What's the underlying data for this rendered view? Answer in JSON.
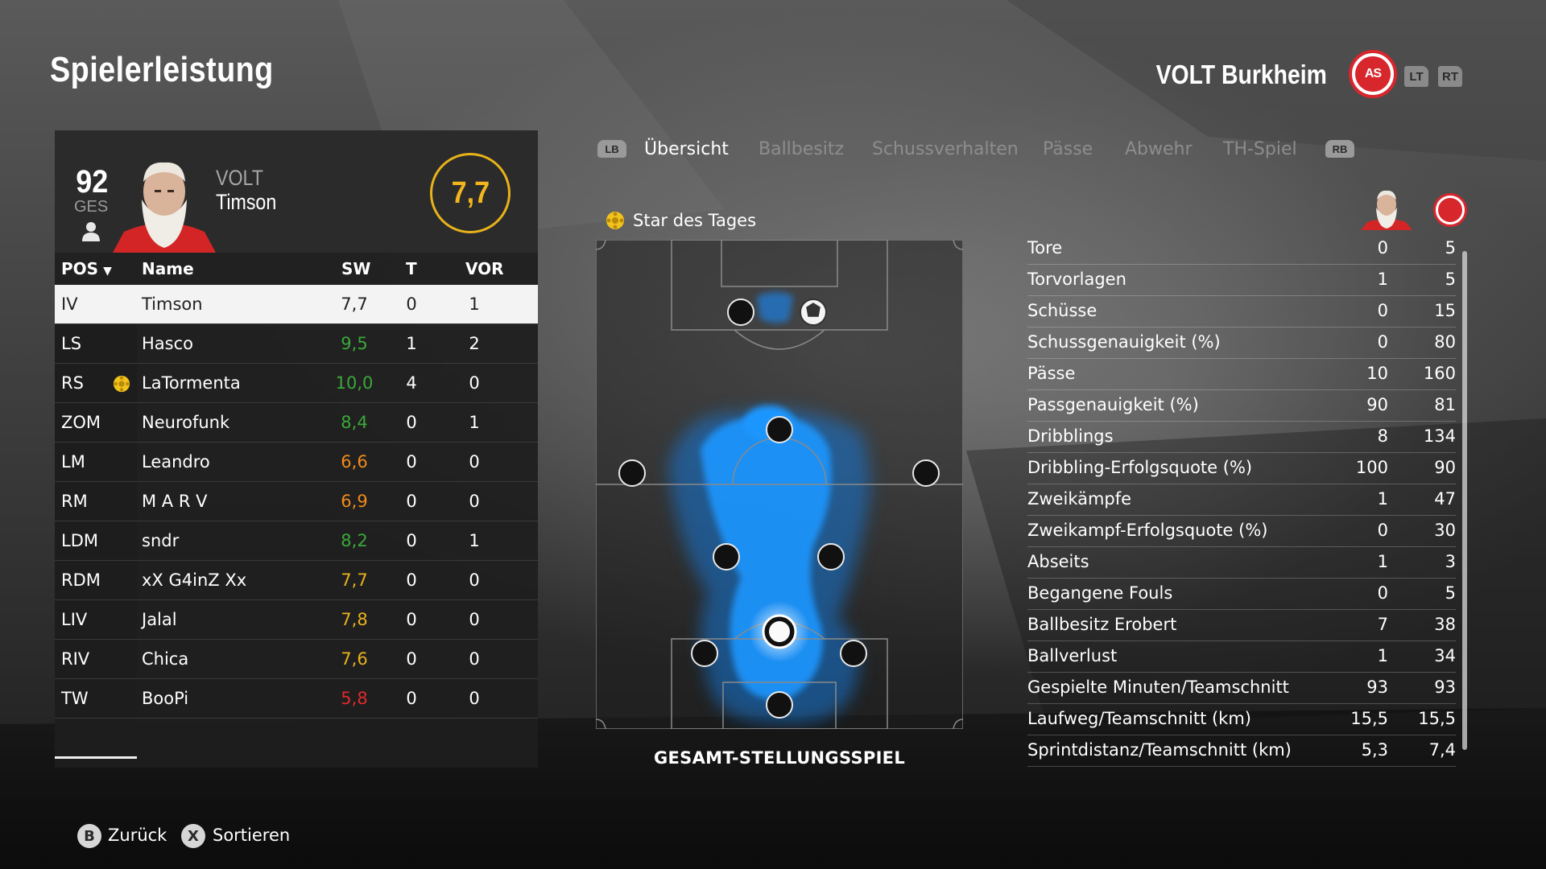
{
  "header": {
    "title": "Spielerleistung",
    "club_name": "VOLT Burkheim",
    "triggers": {
      "lt": "LT",
      "rt": "RT"
    }
  },
  "player_card": {
    "overall": "92",
    "overall_label": "GES",
    "club": "VOLT",
    "name": "Timson",
    "rating": "7,7"
  },
  "table": {
    "headers": {
      "pos": "POS",
      "name": "Name",
      "sw": "SW",
      "t": "T",
      "vor": "VOR"
    },
    "rows": [
      {
        "pos": "IV",
        "name": "Timson",
        "sw": "7,7",
        "t": "0",
        "vor": "1",
        "rating_color": "#222222",
        "selected": true
      },
      {
        "pos": "LS",
        "name": "Hasco",
        "sw": "9,5",
        "t": "1",
        "vor": "2",
        "rating_color": "#3aa83a"
      },
      {
        "pos": "RS",
        "name": "LaTormenta",
        "sw": "10,0",
        "t": "4",
        "vor": "0",
        "rating_color": "#3aa83a",
        "star": true
      },
      {
        "pos": "ZOM",
        "name": "Neurofunk",
        "sw": "8,4",
        "t": "0",
        "vor": "1",
        "rating_color": "#3aa83a"
      },
      {
        "pos": "LM",
        "name": "Leandro",
        "sw": "6,6",
        "t": "0",
        "vor": "0",
        "rating_color": "#f08a1e"
      },
      {
        "pos": "RM",
        "name": "M A R V",
        "sw": "6,9",
        "t": "0",
        "vor": "0",
        "rating_color": "#f08a1e"
      },
      {
        "pos": "LDM",
        "name": "sndr",
        "sw": "8,2",
        "t": "0",
        "vor": "1",
        "rating_color": "#3aa83a"
      },
      {
        "pos": "RDM",
        "name": "xX G4inZ Xx",
        "sw": "7,7",
        "t": "0",
        "vor": "0",
        "rating_color": "#e9b21e"
      },
      {
        "pos": "LIV",
        "name": "Jalal",
        "sw": "7,8",
        "t": "0",
        "vor": "0",
        "rating_color": "#e9b21e"
      },
      {
        "pos": "RIV",
        "name": "Chica",
        "sw": "7,6",
        "t": "0",
        "vor": "0",
        "rating_color": "#e9b21e"
      },
      {
        "pos": "TW",
        "name": "BooPi",
        "sw": "5,8",
        "t": "0",
        "vor": "0",
        "rating_color": "#e02a2a"
      }
    ]
  },
  "tabs": {
    "lb": "LB",
    "rb": "RB",
    "items": [
      "Übersicht",
      "Ballbesitz",
      "Schussverhalten",
      "Pässe",
      "Abwehr",
      "TH-Spiel"
    ],
    "active": "Übersicht"
  },
  "pitch": {
    "star_label": "Star des Tages",
    "caption": "GESAMT-STELLUNGSSPIEL"
  },
  "stats": [
    {
      "label": "Tore",
      "player": "0",
      "team": "5"
    },
    {
      "label": "Torvorlagen",
      "player": "1",
      "team": "5"
    },
    {
      "label": "Schüsse",
      "player": "0",
      "team": "15"
    },
    {
      "label": "Schussgenauigkeit (%)",
      "player": "0",
      "team": "80"
    },
    {
      "label": "Pässe",
      "player": "10",
      "team": "160"
    },
    {
      "label": "Passgenauigkeit (%)",
      "player": "90",
      "team": "81"
    },
    {
      "label": "Dribblings",
      "player": "8",
      "team": "134"
    },
    {
      "label": "Dribbling-Erfolgsquote (%)",
      "player": "100",
      "team": "90"
    },
    {
      "label": "Zweikämpfe",
      "player": "1",
      "team": "47"
    },
    {
      "label": "Zweikampf-Erfolgsquote (%)",
      "player": "0",
      "team": "30"
    },
    {
      "label": "Abseits",
      "player": "1",
      "team": "3"
    },
    {
      "label": "Begangene Fouls",
      "player": "0",
      "team": "5"
    },
    {
      "label": "Ballbesitz Erobert",
      "player": "7",
      "team": "38"
    },
    {
      "label": "Ballverlust",
      "player": "1",
      "team": "34"
    },
    {
      "label": "Gespielte Minuten/Teamschnitt",
      "player": "93",
      "team": "93"
    },
    {
      "label": "Laufweg/Teamschnitt (km)",
      "player": "15,5",
      "team": "15,5"
    },
    {
      "label": "Sprintdistanz/Teamschnitt (km)",
      "player": "5,3",
      "team": "7,4"
    }
  ],
  "footer": {
    "back_button": "B",
    "back_label": "Zurück",
    "sort_button": "X",
    "sort_label": "Sortieren"
  },
  "colors": {
    "accent_gold": "#e8b21a",
    "heatmap_blue": "#1f96ff",
    "club_red": "#d8262d"
  }
}
